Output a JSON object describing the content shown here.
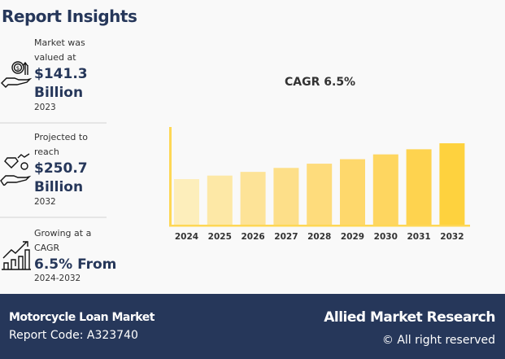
{
  "header": {
    "title": "Report Insights"
  },
  "insights": [
    {
      "label": "Market was valued at",
      "value": "$141.3 Billion",
      "year": "2023",
      "icon": "money-hand-icon"
    },
    {
      "label": "Projected to reach",
      "value": "$250.7 Billion",
      "year": "2032",
      "icon": "diamond-hand-icon"
    },
    {
      "label": "Growing at a CAGR",
      "value": "6.5% From",
      "year": "2024-2032",
      "icon": "growth-chart-icon"
    }
  ],
  "chart_data": {
    "type": "bar",
    "title": "CAGR 6.5%",
    "categories": [
      "2024",
      "2025",
      "2026",
      "2027",
      "2028",
      "2029",
      "2030",
      "2031",
      "2032"
    ],
    "values": [
      150.5,
      160.3,
      170.7,
      181.8,
      193.6,
      206.2,
      219.6,
      233.9,
      250.7
    ],
    "colors": [
      "#fdeebb",
      "#fde8a6",
      "#fde397",
      "#fddf89",
      "#fedc7c",
      "#fed86c",
      "#fed660",
      "#fed34f",
      "#fed23e"
    ],
    "axis_color": "#fed755",
    "grid": false
  },
  "footer": {
    "market": "Motorcycle Loan Market",
    "report_code": "Report Code: A323740",
    "brand": "Allied Market Research",
    "rights": "© All right reserved"
  }
}
